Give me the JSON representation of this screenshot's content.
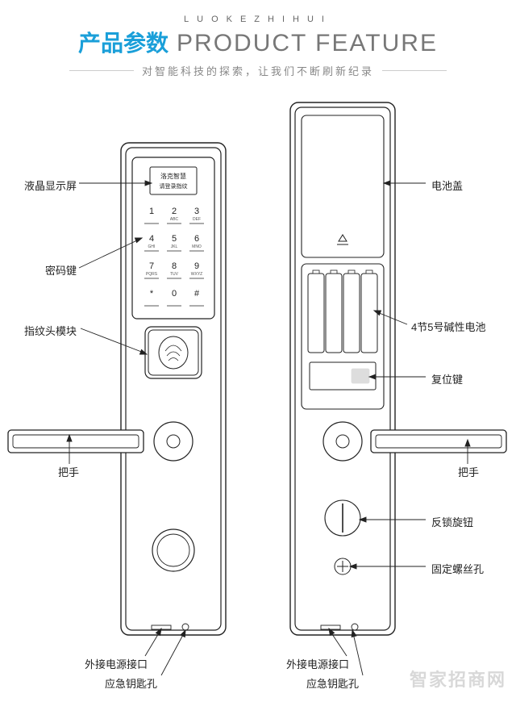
{
  "header": {
    "subbrand": "LUOKEZHIHUI",
    "title_cn": "产品参数",
    "title_en": "PRODUCT FEATURE",
    "tagline": "对智能科技的探索，让我们不断刷新纪录"
  },
  "colors": {
    "accent": "#1a9fd9",
    "text": "#222222",
    "muted": "#888888",
    "line": "#333333",
    "bg": "#ffffff",
    "outline": "#222222"
  },
  "front": {
    "screen_line1": "洛克智慧",
    "screen_line2": "请登录指纹",
    "keypad": [
      {
        "n": "1",
        "s": ""
      },
      {
        "n": "2",
        "s": "ABC"
      },
      {
        "n": "3",
        "s": "DEF"
      },
      {
        "n": "4",
        "s": "GHI"
      },
      {
        "n": "5",
        "s": "JKL"
      },
      {
        "n": "6",
        "s": "MNO"
      },
      {
        "n": "7",
        "s": "PQRS"
      },
      {
        "n": "8",
        "s": "TUV"
      },
      {
        "n": "9",
        "s": "WXYZ"
      },
      {
        "n": "*",
        "s": ""
      },
      {
        "n": "0",
        "s": ""
      },
      {
        "n": "#",
        "s": ""
      }
    ],
    "labels": {
      "lcd": "液晶显示屏",
      "keypad": "密码键",
      "fingerprint": "指纹头模块",
      "handle": "把手",
      "power_port": "外接电源接口",
      "keyhole": "应急钥匙孔"
    }
  },
  "back": {
    "labels": {
      "battery_cover": "电池盖",
      "batteries": "4节5号碱性电池",
      "reset": "复位键",
      "handle": "把手",
      "lock_knob": "反锁旋钮",
      "screw": "固定螺丝孔",
      "power_port": "外接电源接口",
      "keyhole": "应急钥匙孔"
    }
  },
  "watermark": "智家招商网",
  "diagram_style": {
    "stroke_width": 1.4,
    "leader_width": 0.9,
    "corner_radius": 8
  }
}
